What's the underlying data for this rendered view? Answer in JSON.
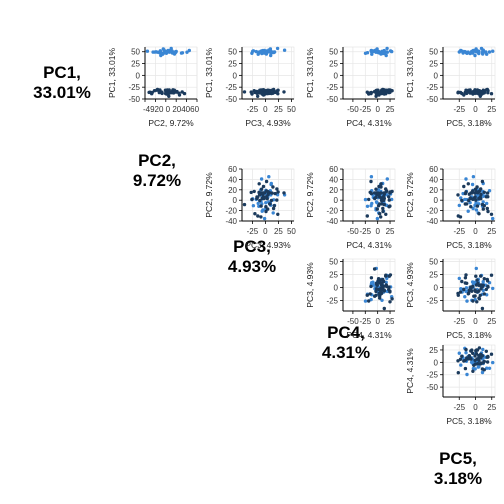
{
  "chart_data": {
    "type": "scatter",
    "pcs": [
      {
        "name": "PC1",
        "variance": "33.01%",
        "diag_line1": "PC1,",
        "diag_line2": "33.01%",
        "axis_label": "PC1, 33.01%",
        "ticks": [
          -50,
          -25,
          0,
          25,
          50
        ],
        "tick_labels": [
          "-50",
          "-25",
          "0",
          "25",
          "50"
        ],
        "lim": [
          -50,
          60
        ]
      },
      {
        "name": "PC2",
        "variance": "9.72%",
        "diag_line1": "PC2,",
        "diag_line2": "9.72%",
        "axis_label": "PC2, 9.72%",
        "ticks": [
          -40,
          -20,
          0,
          20,
          40,
          60
        ],
        "tick_labels": [
          "-40",
          "-20",
          "0",
          "20",
          "40",
          "60"
        ],
        "xtick_text": "-4920 0 204060",
        "lim": [
          -40,
          60
        ]
      },
      {
        "name": "PC3",
        "variance": "4.93%",
        "diag_line1": "PC3,",
        "diag_line2": "4.93%",
        "axis_label": "PC3, 4.93%",
        "ticks": [
          -25,
          0,
          25,
          50
        ],
        "tick_labels": [
          "-25",
          "0",
          "25",
          "50"
        ],
        "lim": [
          -45,
          55
        ]
      },
      {
        "name": "PC4",
        "variance": "4.31%",
        "diag_line1": "PC4,",
        "diag_line2": "4.31%",
        "axis_label": "PC4, 4.31%",
        "ticks": [
          -50,
          -25,
          0,
          25
        ],
        "tick_labels": [
          "-50",
          "-25",
          "0",
          "25"
        ],
        "lim": [
          -70,
          35
        ]
      },
      {
        "name": "PC5",
        "variance": "3.18%",
        "diag_line1": "PC5,",
        "diag_line2": "3.18%",
        "axis_label": "PC5, 3.18%",
        "ticks": [
          -25,
          0,
          25
        ],
        "tick_labels": [
          "-25",
          "0",
          "25"
        ],
        "lim": [
          -50,
          30
        ]
      }
    ],
    "groups": [
      {
        "color": "#3a86d4"
      },
      {
        "color": "#1b3a5c"
      }
    ],
    "grid": true,
    "legend": "none"
  }
}
